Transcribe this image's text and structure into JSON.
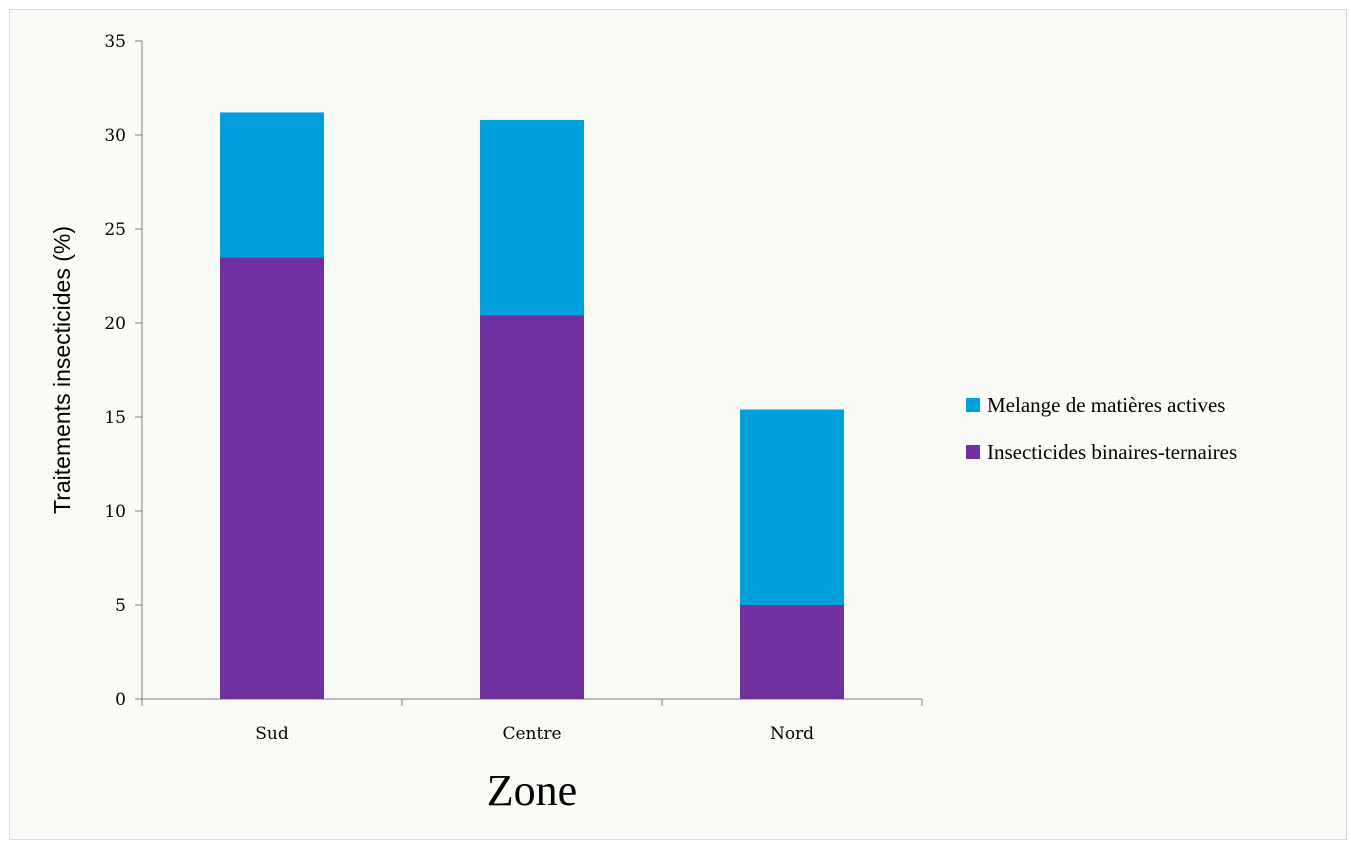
{
  "chart_data": {
    "type": "bar",
    "stacked": true,
    "categories": [
      "Sud",
      "Centre",
      "Nord"
    ],
    "series": [
      {
        "name": "Insecticides binaires-ternaires",
        "values": [
          23.5,
          20.4,
          5.0
        ],
        "color": "#7030a0"
      },
      {
        "name": "Melange de matières actives",
        "values": [
          7.7,
          10.4,
          10.4
        ],
        "color": "#00a0dc"
      }
    ],
    "title": "",
    "xlabel": "Zone",
    "ylabel": "Traitements insecticides (%)",
    "ylim": [
      0,
      35
    ],
    "yticks": [
      0,
      5,
      10,
      15,
      20,
      25,
      30,
      35
    ],
    "ytick_labels": [
      "0",
      "5",
      "10",
      "15",
      "20",
      "25",
      "30",
      "35"
    ],
    "grid": false,
    "legend_position": "right",
    "legend_order": [
      "Melange de matières actives",
      "Insecticides binaires-ternaires"
    ]
  }
}
